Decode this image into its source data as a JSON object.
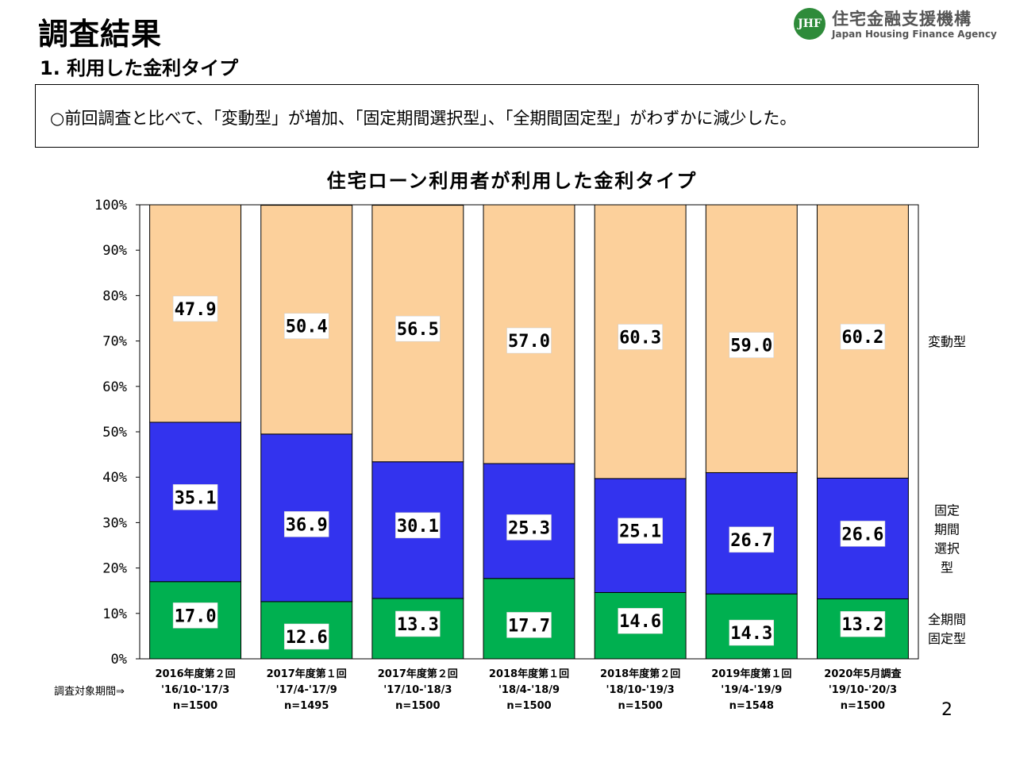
{
  "page": {
    "title": "調査結果",
    "subtitle": "1. 利用した金利タイプ",
    "summary": "○前回調査と比べて、「変動型」が増加、「固定期間選択型」、「全期間固定型」がわずかに減少した。",
    "page_number": "2",
    "period_label": "調査対象期間⇒"
  },
  "logo": {
    "mark": "JHF",
    "name": "住宅金融支援機構",
    "english": "Japan Housing Finance Agency",
    "color": "#2e8b3a"
  },
  "chart_data": {
    "type": "bar",
    "stacked": true,
    "title": "住宅ローン利用者が利用した金利タイプ",
    "categories": [
      {
        "survey": "2016年度第２回",
        "period": "'16/10-'17/3",
        "n": "n=1500"
      },
      {
        "survey": "2017年度第１回",
        "period": "'17/4-'17/9",
        "n": "n=1495"
      },
      {
        "survey": "2017年度第２回",
        "period": "'17/10-'18/3",
        "n": "n=1500"
      },
      {
        "survey": "2018年度第１回",
        "period": "'18/4-'18/9",
        "n": "n=1500"
      },
      {
        "survey": "2018年度第２回",
        "period": "'18/10-'19/3",
        "n": "n=1500"
      },
      {
        "survey": "2019年度第１回",
        "period": "'19/4-'19/9",
        "n": "n=1548"
      },
      {
        "survey": "2020年5月調査",
        "period": "'19/10-'20/3",
        "n": "n=1500"
      }
    ],
    "series": [
      {
        "name": "全期間固定型",
        "color": "#00b050",
        "values": [
          17.0,
          12.6,
          13.3,
          17.7,
          14.6,
          14.3,
          13.2
        ]
      },
      {
        "name": "固定期間選択型",
        "color": "#3333ee",
        "values": [
          35.1,
          36.9,
          30.1,
          25.3,
          25.1,
          26.7,
          26.6
        ]
      },
      {
        "name": "変動型",
        "color": "#fcd09b",
        "values": [
          47.9,
          50.4,
          56.5,
          57.0,
          60.3,
          59.0,
          60.2
        ]
      }
    ],
    "legend_placement": "right",
    "ylim": [
      0,
      100
    ],
    "yticks": [
      "0%",
      "10%",
      "20%",
      "30%",
      "40%",
      "50%",
      "60%",
      "70%",
      "80%",
      "90%",
      "100%"
    ],
    "grid": false
  }
}
